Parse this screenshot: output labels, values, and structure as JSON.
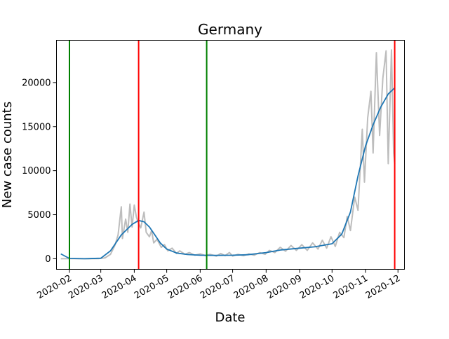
{
  "chart_data": {
    "type": "line",
    "title": "Germany",
    "xlabel": "Date",
    "ylabel": "New case counts",
    "x_ticks": [
      "2020-02",
      "2020-03",
      "2020-04",
      "2020-05",
      "2020-06",
      "2020-07",
      "2020-08",
      "2020-09",
      "2020-10",
      "2020-11",
      "2020-12"
    ],
    "y_ticks": [
      "0",
      "5000",
      "10000",
      "15000",
      "20000"
    ],
    "xlim": [
      "2020-01-20",
      "2020-12-07"
    ],
    "ylim": [
      -1200,
      24800
    ],
    "grid": false,
    "series": [
      {
        "color": "#bdbdbd",
        "points": [
          [
            "2020-01-24",
            0
          ],
          [
            "2020-02-01",
            10
          ],
          [
            "2020-02-15",
            0
          ],
          [
            "2020-02-28",
            20
          ],
          [
            "2020-03-05",
            100
          ],
          [
            "2020-03-10",
            500
          ],
          [
            "2020-03-14",
            1500
          ],
          [
            "2020-03-17",
            2700
          ],
          [
            "2020-03-20",
            5900
          ],
          [
            "2020-03-21",
            2300
          ],
          [
            "2020-03-24",
            4500
          ],
          [
            "2020-03-26",
            3000
          ],
          [
            "2020-03-28",
            6200
          ],
          [
            "2020-03-30",
            3600
          ],
          [
            "2020-04-01",
            6100
          ],
          [
            "2020-04-03",
            4700
          ],
          [
            "2020-04-05",
            4000
          ],
          [
            "2020-04-07",
            3500
          ],
          [
            "2020-04-10",
            5300
          ],
          [
            "2020-04-12",
            3000
          ],
          [
            "2020-04-15",
            2500
          ],
          [
            "2020-04-17",
            3200
          ],
          [
            "2020-04-19",
            1800
          ],
          [
            "2020-04-22",
            2200
          ],
          [
            "2020-04-26",
            1300
          ],
          [
            "2020-04-29",
            1600
          ],
          [
            "2020-05-02",
            900
          ],
          [
            "2020-05-06",
            1200
          ],
          [
            "2020-05-10",
            600
          ],
          [
            "2020-05-13",
            900
          ],
          [
            "2020-05-18",
            500
          ],
          [
            "2020-05-22",
            700
          ],
          [
            "2020-05-27",
            400
          ],
          [
            "2020-06-01",
            550
          ],
          [
            "2020-06-06",
            350
          ],
          [
            "2020-06-10",
            500
          ],
          [
            "2020-06-16",
            300
          ],
          [
            "2020-06-20",
            600
          ],
          [
            "2020-06-24",
            350
          ],
          [
            "2020-06-28",
            700
          ],
          [
            "2020-07-01",
            300
          ],
          [
            "2020-07-06",
            500
          ],
          [
            "2020-07-11",
            350
          ],
          [
            "2020-07-16",
            550
          ],
          [
            "2020-07-21",
            400
          ],
          [
            "2020-07-26",
            700
          ],
          [
            "2020-07-31",
            500
          ],
          [
            "2020-08-04",
            950
          ],
          [
            "2020-08-09",
            700
          ],
          [
            "2020-08-14",
            1300
          ],
          [
            "2020-08-19",
            850
          ],
          [
            "2020-08-24",
            1500
          ],
          [
            "2020-08-29",
            950
          ],
          [
            "2020-09-03",
            1600
          ],
          [
            "2020-09-08",
            950
          ],
          [
            "2020-09-13",
            1800
          ],
          [
            "2020-09-18",
            1100
          ],
          [
            "2020-09-22",
            2100
          ],
          [
            "2020-09-26",
            1200
          ],
          [
            "2020-09-30",
            2500
          ],
          [
            "2020-10-04",
            1400
          ],
          [
            "2020-10-08",
            3000
          ],
          [
            "2020-10-12",
            2400
          ],
          [
            "2020-10-15",
            4800
          ],
          [
            "2020-10-18",
            3200
          ],
          [
            "2020-10-22",
            7000
          ],
          [
            "2020-10-25",
            5500
          ],
          [
            "2020-10-29",
            14700
          ],
          [
            "2020-10-31",
            8700
          ],
          [
            "2020-11-03",
            16000
          ],
          [
            "2020-11-06",
            19000
          ],
          [
            "2020-11-08",
            12000
          ],
          [
            "2020-11-11",
            23400
          ],
          [
            "2020-11-14",
            14000
          ],
          [
            "2020-11-17",
            20500
          ],
          [
            "2020-11-20",
            23600
          ],
          [
            "2020-11-22",
            10800
          ],
          [
            "2020-11-25",
            23700
          ],
          [
            "2020-11-27",
            12000
          ],
          [
            "2020-11-28",
            10800
          ]
        ]
      },
      {
        "color": "#1f77b4",
        "points": [
          [
            "2020-01-24",
            550
          ],
          [
            "2020-02-01",
            30
          ],
          [
            "2020-02-15",
            0
          ],
          [
            "2020-03-01",
            60
          ],
          [
            "2020-03-10",
            900
          ],
          [
            "2020-03-20",
            2700
          ],
          [
            "2020-03-30",
            3900
          ],
          [
            "2020-04-05",
            4350
          ],
          [
            "2020-04-10",
            4200
          ],
          [
            "2020-04-15",
            3600
          ],
          [
            "2020-04-20",
            2700
          ],
          [
            "2020-04-25",
            1800
          ],
          [
            "2020-05-01",
            1100
          ],
          [
            "2020-05-10",
            650
          ],
          [
            "2020-05-20",
            480
          ],
          [
            "2020-06-01",
            400
          ],
          [
            "2020-06-15",
            380
          ],
          [
            "2020-07-01",
            400
          ],
          [
            "2020-07-15",
            450
          ],
          [
            "2020-08-01",
            700
          ],
          [
            "2020-08-15",
            1000
          ],
          [
            "2020-09-01",
            1200
          ],
          [
            "2020-09-15",
            1350
          ],
          [
            "2020-10-01",
            1700
          ],
          [
            "2020-10-10",
            2800
          ],
          [
            "2020-10-18",
            5300
          ],
          [
            "2020-10-25",
            9400
          ],
          [
            "2020-11-01",
            12800
          ],
          [
            "2020-11-08",
            15200
          ],
          [
            "2020-11-15",
            17200
          ],
          [
            "2020-11-22",
            18700
          ],
          [
            "2020-11-28",
            19400
          ]
        ]
      }
    ],
    "vlines": [
      {
        "x": "2020-02-01",
        "color": "#008000"
      },
      {
        "x": "2020-04-05",
        "color": "#ff0000"
      },
      {
        "x": "2020-06-07",
        "color": "#008000"
      },
      {
        "x": "2020-11-28",
        "color": "#ff0000"
      }
    ]
  }
}
